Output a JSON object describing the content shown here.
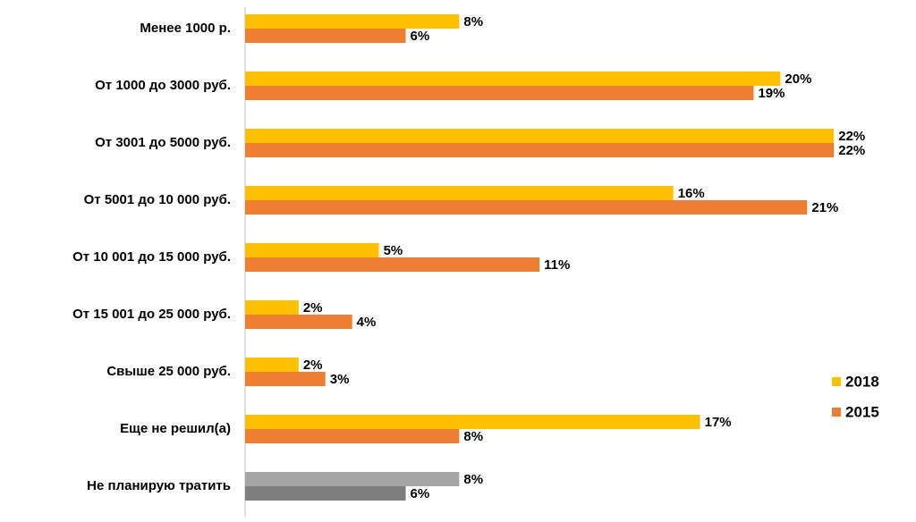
{
  "chart_data": {
    "type": "hbar",
    "categories": [
      "Менее 1000 р.",
      "От 1000 до 3000 руб.",
      "От 3001 до 5000 руб.",
      "От 5001 до 10 000 руб.",
      "От 10 001 до 15 000 руб.",
      "От 15 001 до 25 000 руб.",
      "Свыше 25 000 руб.",
      "Еще не решил(а)",
      "Не планирую тратить"
    ],
    "series": [
      {
        "name": "2018",
        "color": "#FFC000",
        "colors": [
          "#FFC000",
          "#FFC000",
          "#FFC000",
          "#FFC000",
          "#FFC000",
          "#FFC000",
          "#FFC000",
          "#FFC000",
          "#A5A5A5"
        ],
        "values": [
          8,
          20,
          22,
          16,
          5,
          2,
          2,
          17,
          8
        ],
        "value_labels": [
          "8%",
          "20%",
          "22%",
          "16%",
          "5%",
          "2%",
          "2%",
          "17%",
          "8%"
        ]
      },
      {
        "name": "2015",
        "color": "#ED7D31",
        "colors": [
          "#ED7D31",
          "#ED7D31",
          "#ED7D31",
          "#ED7D31",
          "#ED7D31",
          "#ED7D31",
          "#ED7D31",
          "#ED7D31",
          "#7F7F7F"
        ],
        "values": [
          6,
          19,
          22,
          21,
          11,
          4,
          3,
          8,
          6
        ],
        "value_labels": [
          "6%",
          "19%",
          "22%",
          "21%",
          "11%",
          "4%",
          "3%",
          "8%",
          "6%"
        ]
      }
    ],
    "xlim": [
      0,
      25
    ],
    "legend": "right"
  }
}
